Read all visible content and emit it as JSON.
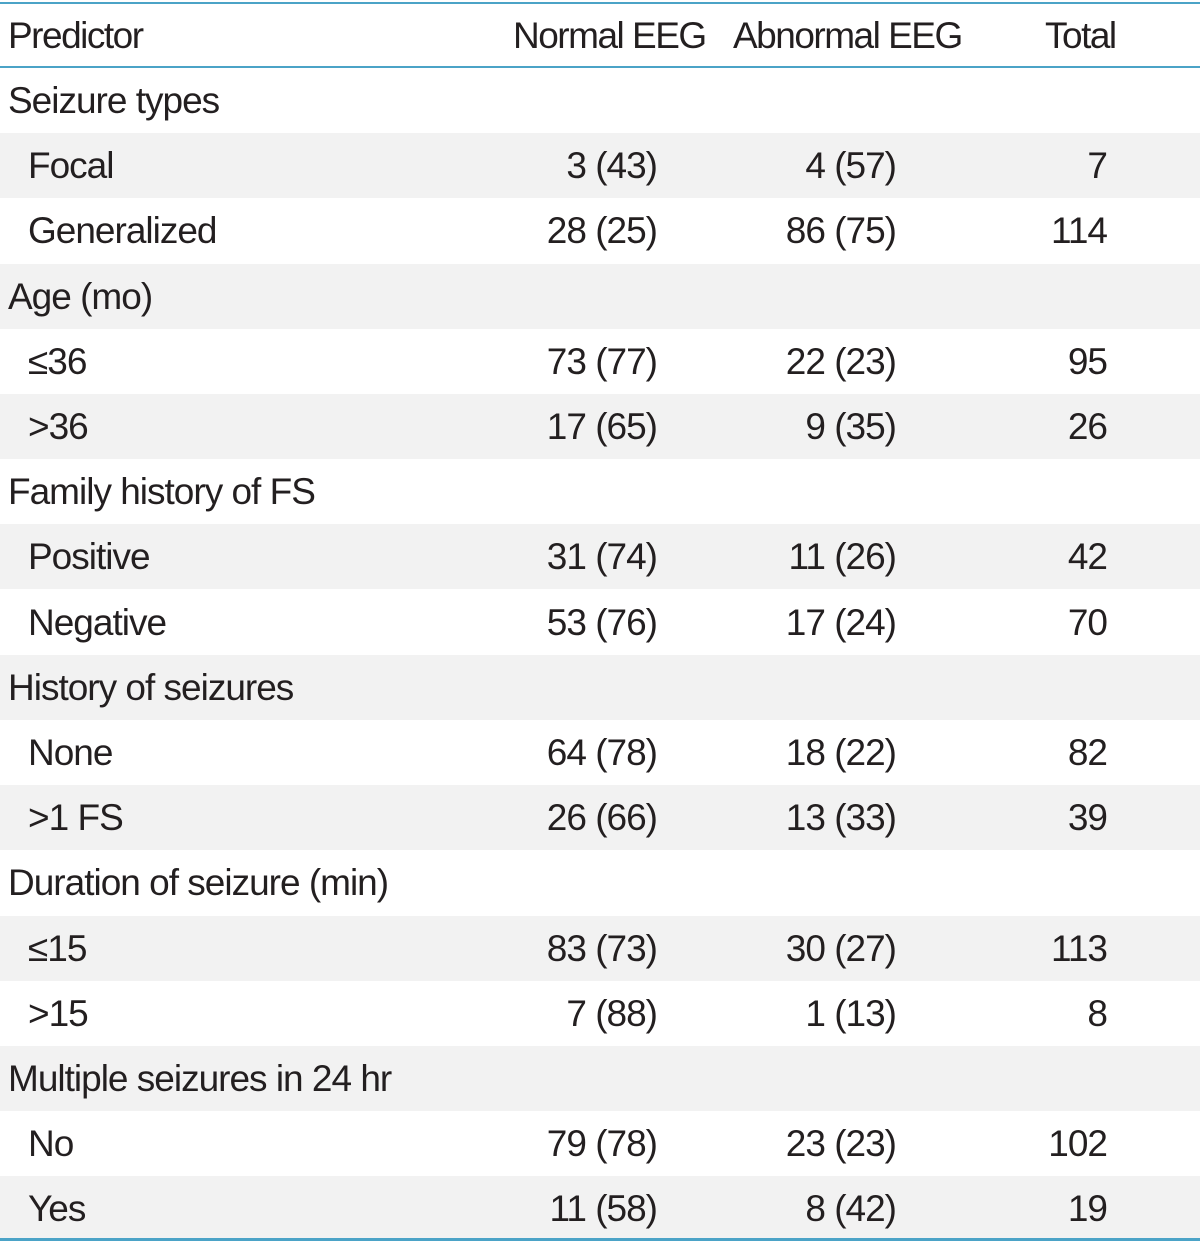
{
  "header": {
    "predictor": "Predictor",
    "normal": "Normal EEG",
    "abnormal": "Abnormal EEG",
    "total": "Total"
  },
  "rows": [
    {
      "type": "group",
      "label": "Seizure types"
    },
    {
      "type": "item",
      "label": "Focal",
      "normal": "3 (43)",
      "abnormal": "4 (57)",
      "total": "7"
    },
    {
      "type": "item",
      "label": "Generalized",
      "normal": "28 (25)",
      "abnormal": "86 (75)",
      "total": "114"
    },
    {
      "type": "group",
      "label": "Age (mo)"
    },
    {
      "type": "item",
      "label": "≤36",
      "normal": "73 (77)",
      "abnormal": "22 (23)",
      "total": "95"
    },
    {
      "type": "item",
      "label": ">36",
      "normal": "17 (65)",
      "abnormal": "9 (35)",
      "total": "26"
    },
    {
      "type": "group",
      "label": "Family history of FS"
    },
    {
      "type": "item",
      "label": "Positive",
      "normal": "31 (74)",
      "abnormal": "11 (26)",
      "total": "42"
    },
    {
      "type": "item",
      "label": "Negative",
      "normal": "53 (76)",
      "abnormal": "17 (24)",
      "total": "70"
    },
    {
      "type": "group",
      "label": "History of seizures"
    },
    {
      "type": "item",
      "label": "None",
      "normal": "64 (78)",
      "abnormal": "18 (22)",
      "total": "82"
    },
    {
      "type": "item",
      "label": ">1 FS",
      "normal": "26 (66)",
      "abnormal": "13 (33)",
      "total": "39"
    },
    {
      "type": "group",
      "label": "Duration of seizure (min)"
    },
    {
      "type": "item",
      "label": "≤15",
      "normal": "83 (73)",
      "abnormal": "30 (27)",
      "total": "113"
    },
    {
      "type": "item",
      "label": ">15",
      "normal": "7 (88)",
      "abnormal": "1 (13)",
      "total": "8"
    },
    {
      "type": "group",
      "label": "Multiple seizures in 24 hr"
    },
    {
      "type": "item",
      "label": "No",
      "normal": "79 (78)",
      "abnormal": "23 (23)",
      "total": "102"
    },
    {
      "type": "item",
      "label": "Yes",
      "normal": "11 (58)",
      "abnormal": "8 (42)",
      "total": "19"
    }
  ]
}
